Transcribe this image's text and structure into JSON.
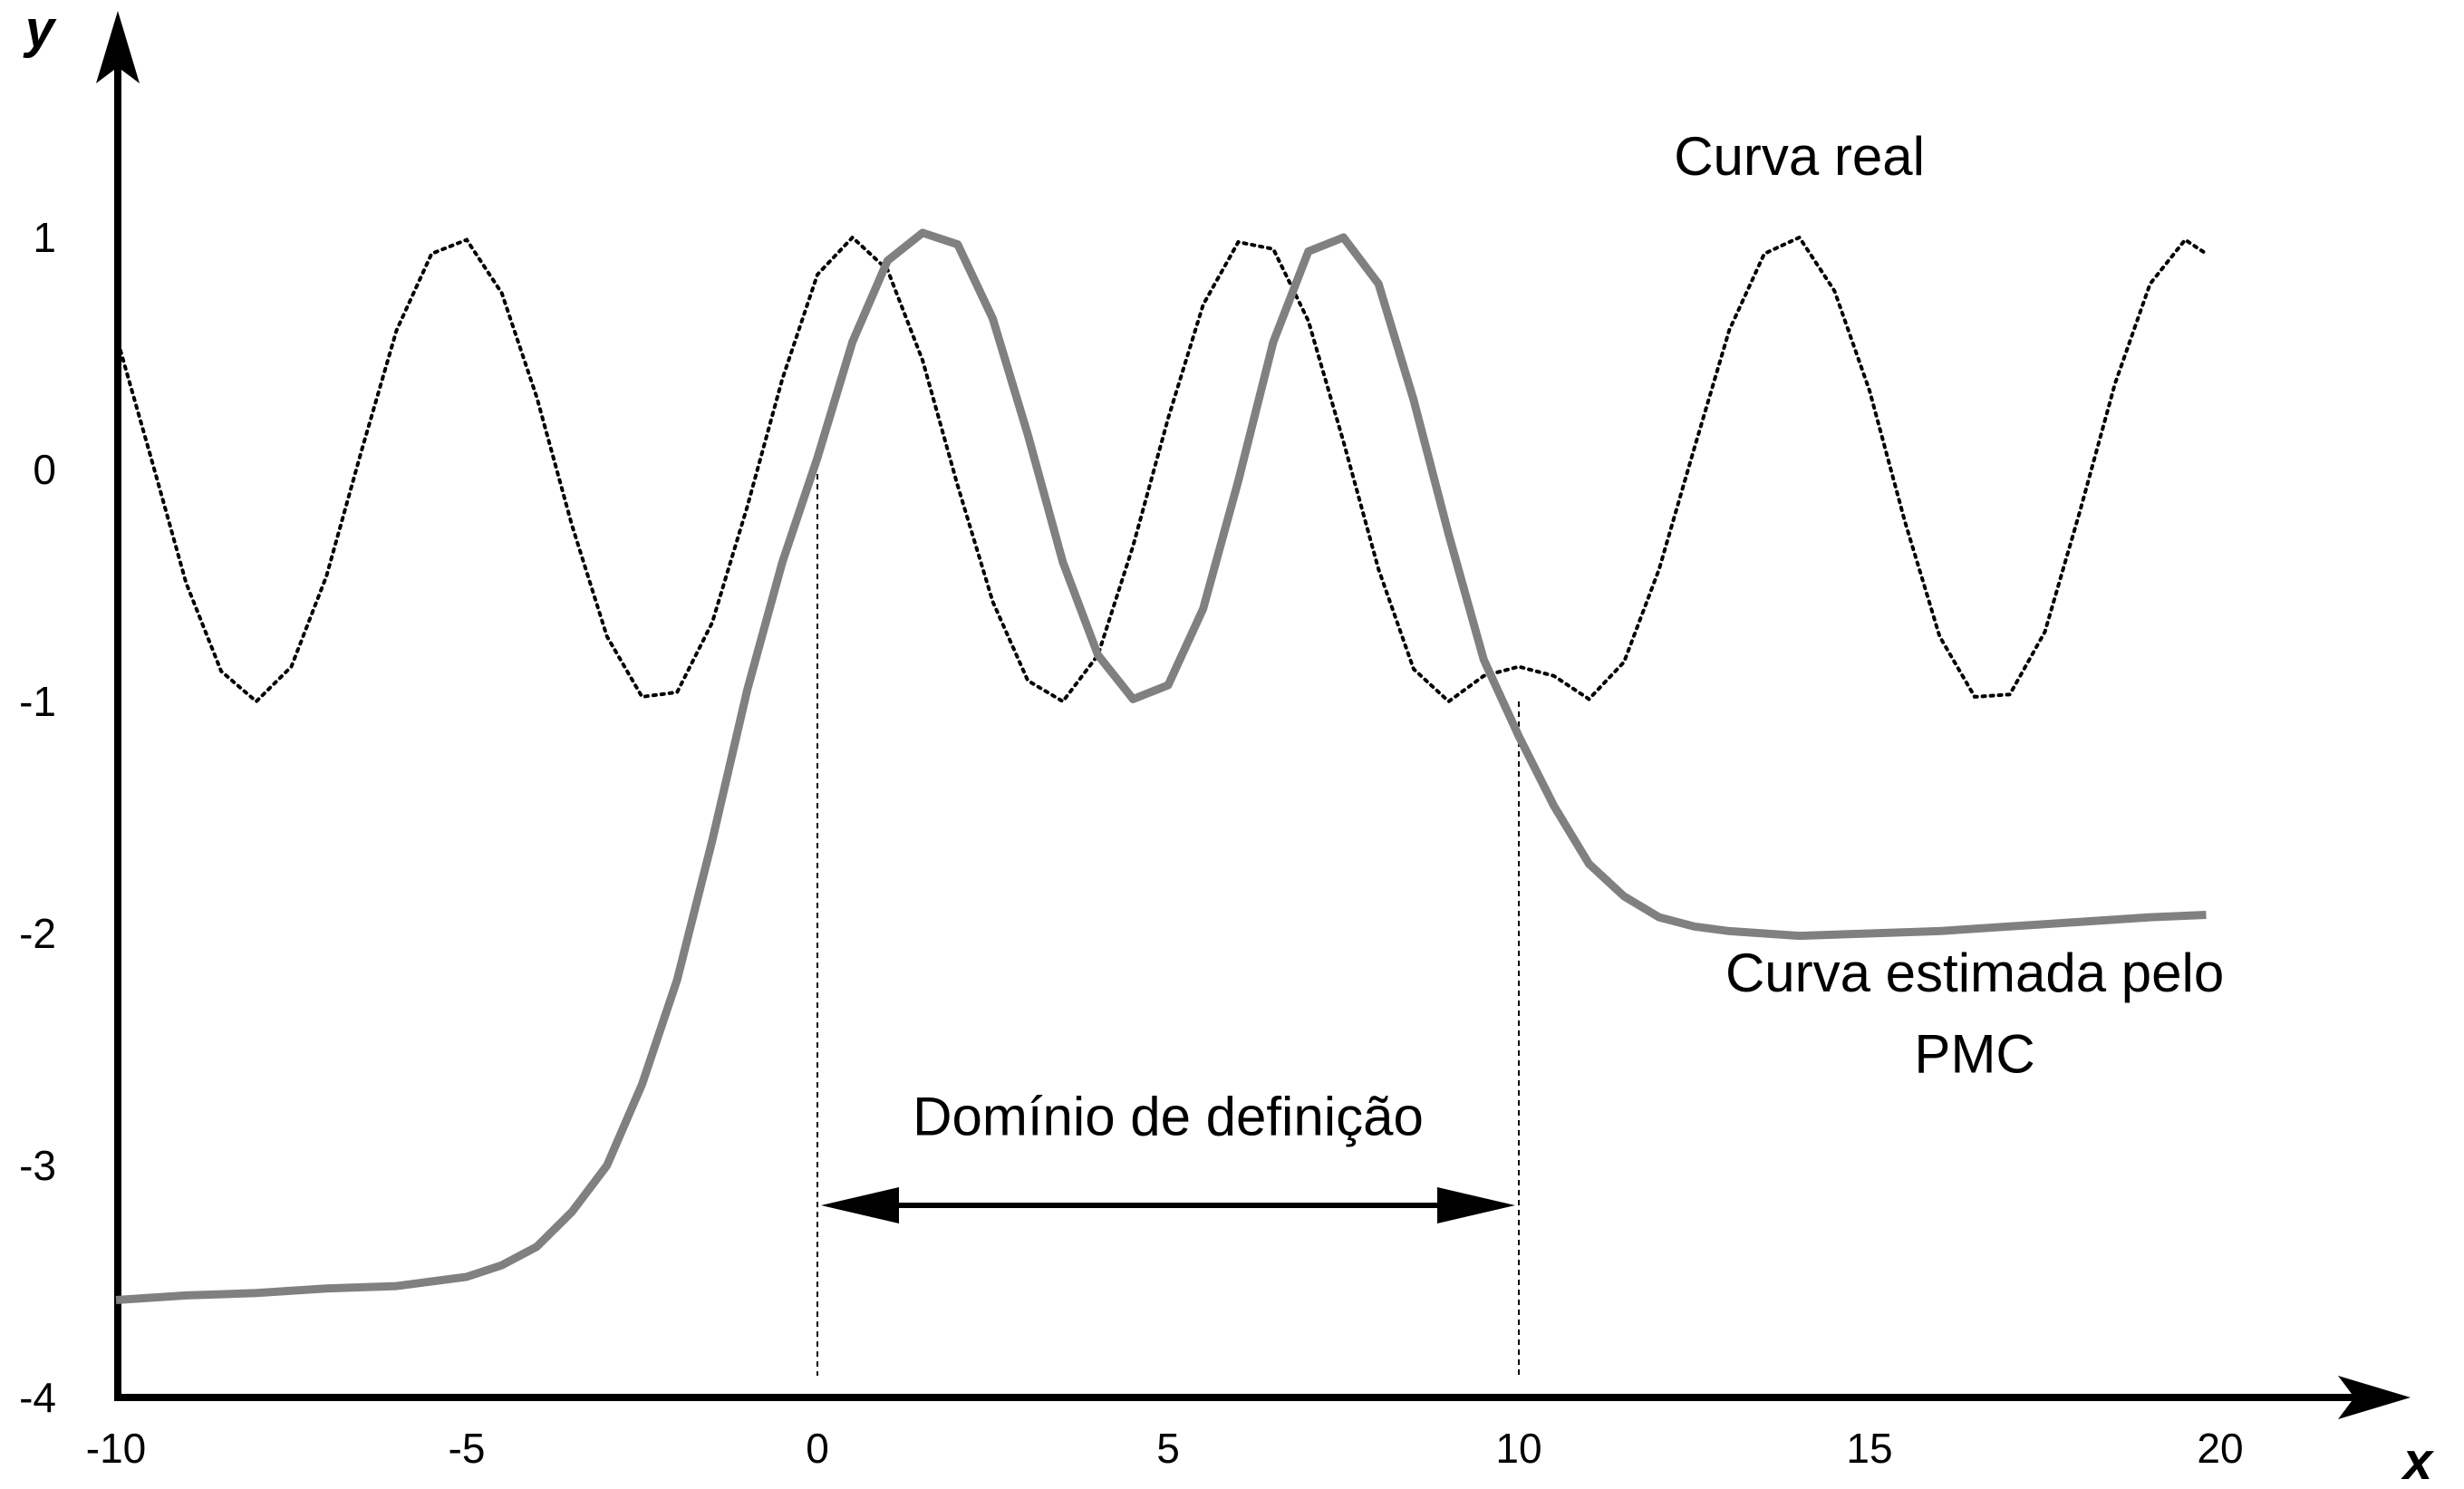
{
  "chart_data": {
    "type": "line",
    "xlabel": "x",
    "ylabel": "y",
    "xlim": [
      -10,
      22.5
    ],
    "ylim": [
      -4,
      1.9
    ],
    "x_ticks": [
      -10,
      -5,
      0,
      5,
      10,
      15,
      20
    ],
    "y_ticks": [
      1,
      0,
      -1,
      -2,
      -3,
      -4
    ],
    "grid": false,
    "series": [
      {
        "name": "Curva real",
        "style": "dotted",
        "color": "#000000",
        "x": [
          -10,
          -9.5,
          -9,
          -8.5,
          -8,
          -7.5,
          -7,
          -6.5,
          -6,
          -5.5,
          -5,
          -4.5,
          -4,
          -3.5,
          -3,
          -2.5,
          -2,
          -1.5,
          -1,
          -0.5,
          0,
          0.5,
          1,
          1.5,
          2,
          2.5,
          3,
          3.5,
          4,
          4.5,
          5,
          5.5,
          6,
          6.5,
          7,
          7.5,
          8,
          8.5,
          9,
          9.5,
          10,
          10.5,
          11,
          11.5,
          12,
          12.5,
          13,
          13.5,
          14,
          14.5,
          15,
          15.5,
          16,
          16.5,
          17,
          17.5,
          18,
          18.5,
          19,
          19.5,
          19.8
        ],
        "y": [
          0.58,
          0.05,
          -0.49,
          -0.87,
          -1.0,
          -0.85,
          -0.46,
          0.08,
          0.6,
          0.93,
          0.99,
          0.76,
          0.31,
          -0.24,
          -0.72,
          -0.98,
          -0.96,
          -0.66,
          -0.16,
          0.39,
          0.84,
          1.0,
          0.86,
          0.47,
          -0.07,
          -0.57,
          -0.91,
          -1.0,
          -0.8,
          -0.33,
          0.22,
          0.71,
          0.98,
          0.95,
          0.64,
          0.12,
          -0.43,
          -0.86,
          -1.0,
          -0.89,
          -0.85,
          -0.89,
          -0.99,
          -0.83,
          -0.43,
          0.09,
          0.6,
          0.93,
          1.0,
          0.77,
          0.34,
          -0.22,
          -0.72,
          -0.98,
          -0.97,
          -0.7,
          -0.18,
          0.37,
          0.8,
          0.99,
          0.93
        ]
      },
      {
        "name": "Curva estimada pelo PMC",
        "style": "solid",
        "color": "#808080",
        "x": [
          -10,
          -9,
          -8,
          -7,
          -6,
          -5,
          -4.5,
          -4,
          -3.5,
          -3,
          -2.5,
          -2,
          -1.5,
          -1,
          -0.5,
          0,
          0.5,
          1,
          1.5,
          2,
          2.5,
          3,
          3.5,
          4,
          4.5,
          5,
          5.5,
          6,
          6.5,
          7,
          7.5,
          8,
          8.5,
          9,
          9.5,
          10,
          10.5,
          11,
          11.5,
          12,
          12.5,
          13,
          14,
          15,
          16,
          17,
          18,
          19,
          19.8
        ],
        "y": [
          -3.58,
          -3.56,
          -3.55,
          -3.53,
          -3.52,
          -3.48,
          -3.43,
          -3.35,
          -3.2,
          -3.0,
          -2.65,
          -2.2,
          -1.6,
          -0.95,
          -0.4,
          0.05,
          0.55,
          0.9,
          1.02,
          0.97,
          0.65,
          0.15,
          -0.4,
          -0.8,
          -0.99,
          -0.93,
          -0.6,
          -0.05,
          0.55,
          0.94,
          1.0,
          0.8,
          0.3,
          -0.28,
          -0.82,
          -1.15,
          -1.45,
          -1.7,
          -1.84,
          -1.93,
          -1.97,
          -1.99,
          -2.01,
          -2.0,
          -1.99,
          -1.97,
          -1.95,
          -1.93,
          -1.92
        ]
      }
    ],
    "annotations": [
      {
        "text": "Curva real",
        "x": 14,
        "y": 1.27
      },
      {
        "text": "Curva estimada pelo",
        "x": 16.5,
        "y": -2.25
      },
      {
        "text": "PMC",
        "x": 16.5,
        "y": -2.6
      },
      {
        "text": "Domínio de definição",
        "x": 5,
        "y": -2.87
      }
    ],
    "domain_interval": [
      0,
      10
    ]
  }
}
